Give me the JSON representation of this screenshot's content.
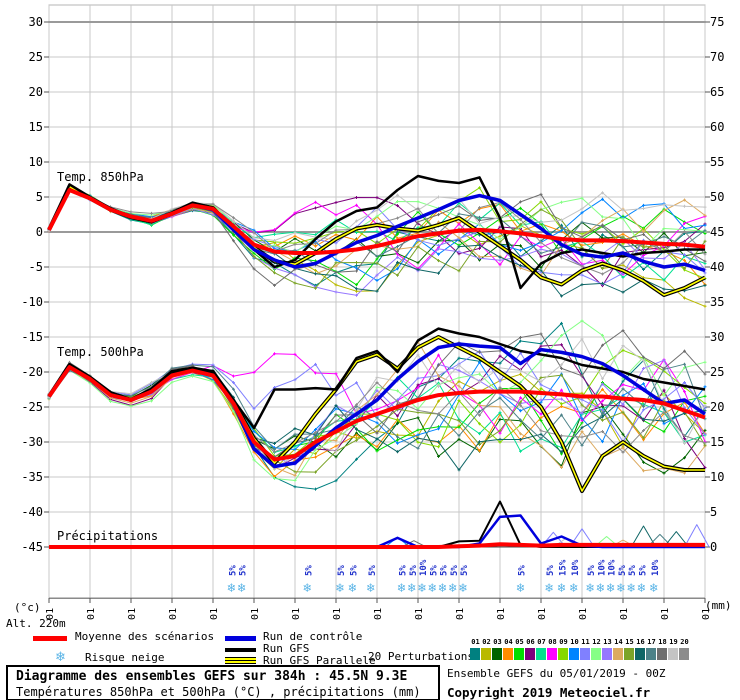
{
  "axes": {
    "left_unit": "(°c)",
    "right_unit": "(mm)",
    "alt_label": "Alt. 220m",
    "left_ticks": [
      30,
      25,
      20,
      15,
      10,
      5,
      0,
      -5,
      -10,
      -15,
      -20,
      -25,
      -30,
      -35,
      -40,
      -45
    ],
    "right_ticks": [
      75,
      70,
      65,
      60,
      55,
      50,
      45,
      40,
      35,
      30,
      25,
      20,
      15,
      10,
      5,
      0
    ],
    "x_labels": [
      "05/01",
      "06/01",
      "07/01",
      "08/01",
      "09/01",
      "10/01",
      "11/01",
      "12/01",
      "13/01",
      "14/01",
      "15/01",
      "16/01",
      "17/01",
      "18/01",
      "19/01",
      "20/01",
      "21/01"
    ]
  },
  "panel_labels": {
    "t850": "Temp. 850hPa",
    "t500": "Temp. 500hPa",
    "precip": "Précipitations"
  },
  "legend": {
    "mean": "Moyenne des scénarios",
    "control": "Run de contrôle",
    "gfs": "Run GFS",
    "parallel": "Run GFS Parallele",
    "perturbations": "20 Perturbations",
    "snow": "Risque neige",
    "member_numbers": [
      "01",
      "02",
      "03",
      "04",
      "05",
      "06",
      "07",
      "08",
      "09",
      "10",
      "11",
      "12",
      "13",
      "14",
      "15",
      "16",
      "17",
      "18",
      "19",
      "20"
    ]
  },
  "footer": {
    "run_info": "Ensemble GEFS du 05/01/2019 - 00Z",
    "copyright": "Copyright 2019 Meteociel.fr"
  },
  "info_box": {
    "line1": "Diagramme des ensembles GEFS sur 384h : 45.5N 9.3E",
    "line2": "Températures 850hPa et 500hPa (°C) , précipitations (mm)"
  },
  "colors": {
    "mean": "#ff0000",
    "control": "#0000dd",
    "gfs": "#000000",
    "parallel_inner": "#ffff00",
    "parallel_outer": "#000000",
    "grid": "#c9c9c9",
    "grid_emphasis": "#9a9a9a",
    "axis": "#8a8a8a",
    "snowflake": "#5ab4e6",
    "snow_label": "#2233cc",
    "members": [
      "#008080",
      "#b9b900",
      "#006400",
      "#ff8c00",
      "#00dd00",
      "#7d007d",
      "#00e090",
      "#ff00ff",
      "#86d800",
      "#0084ff",
      "#8080ff",
      "#86ff86",
      "#9678ff",
      "#dcaa60",
      "#7ca428",
      "#0f6666",
      "#4d8288",
      "#6e6e6e",
      "#c4c4c4",
      "#8c8c8c"
    ]
  },
  "snow_markers": [
    {
      "d": 4.45,
      "p": "5%"
    },
    {
      "d": 4.7,
      "p": "5%"
    },
    {
      "d": 6.3,
      "p": "5%"
    },
    {
      "d": 7.1,
      "p": "5%"
    },
    {
      "d": 7.4,
      "p": "5%"
    },
    {
      "d": 7.85,
      "p": "5%"
    },
    {
      "d": 8.6,
      "p": "5%"
    },
    {
      "d": 8.85,
      "p": "5%"
    },
    {
      "d": 9.1,
      "p": "10%"
    },
    {
      "d": 9.35,
      "p": "5%"
    },
    {
      "d": 9.6,
      "p": "5%"
    },
    {
      "d": 9.85,
      "p": "5%"
    },
    {
      "d": 10.1,
      "p": "5%"
    },
    {
      "d": 11.5,
      "p": "5%"
    },
    {
      "d": 12.2,
      "p": "5%"
    },
    {
      "d": 12.5,
      "p": "15%"
    },
    {
      "d": 12.8,
      "p": "10%"
    },
    {
      "d": 13.2,
      "p": "5%"
    },
    {
      "d": 13.45,
      "p": "10%"
    },
    {
      "d": 13.7,
      "p": "10%"
    },
    {
      "d": 13.95,
      "p": "5%"
    },
    {
      "d": 14.2,
      "p": "5%"
    },
    {
      "d": 14.45,
      "p": "5%"
    },
    {
      "d": 14.75,
      "p": "10%"
    }
  ],
  "chart_data": {
    "type": "line",
    "x_start": "05/01",
    "x_end": "21/01",
    "x_step_hours": 12,
    "points_per_series": 33,
    "t850": {
      "ylabel": "Temp. 850hPa (°C)",
      "mean": [
        0.3,
        6.0,
        4.8,
        3.2,
        2.2,
        1.6,
        2.6,
        3.8,
        3.3,
        0.8,
        -1.8,
        -2.8,
        -3.0,
        -3.0,
        -2.8,
        -2.5,
        -2.0,
        -1.3,
        -0.6,
        -0.2,
        0.2,
        0.3,
        0.1,
        -0.2,
        -0.6,
        -1.0,
        -1.2,
        -1.2,
        -1.3,
        -1.5,
        -1.7,
        -1.8,
        -2.1
      ],
      "control": [
        0.3,
        6.0,
        4.8,
        3.2,
        2.2,
        1.6,
        2.6,
        3.8,
        3.2,
        0.3,
        -2.5,
        -4.0,
        -5.0,
        -4.5,
        -3.0,
        -1.5,
        -0.5,
        0.8,
        2.0,
        3.2,
        4.5,
        5.2,
        4.5,
        2.5,
        0.5,
        -1.8,
        -3.2,
        -3.6,
        -3.0,
        -4.2,
        -5.0,
        -4.6,
        -5.5
      ],
      "gfs": [
        0.3,
        6.8,
        5.0,
        3.4,
        2.2,
        1.6,
        2.8,
        4.2,
        3.5,
        0.3,
        -2.5,
        -5.0,
        -4.0,
        -1.0,
        1.5,
        3.0,
        3.5,
        6.0,
        8.0,
        7.3,
        7.0,
        7.8,
        2.0,
        -8.0,
        -4.5,
        -3.0,
        -2.5,
        -3.0,
        -3.5,
        -3.0,
        -2.8,
        -2.5,
        -2.5
      ],
      "parallel": [
        0.3,
        6.5,
        4.8,
        3.2,
        2.1,
        1.5,
        2.6,
        4.0,
        3.4,
        0.4,
        -2.2,
        -4.2,
        -4.6,
        -3.0,
        -1.0,
        0.5,
        1.0,
        0.5,
        0.2,
        1.0,
        2.0,
        0.0,
        -2.0,
        -4.0,
        -6.5,
        -7.5,
        -5.5,
        -4.5,
        -5.5,
        -7.0,
        -9.0,
        -8.0,
        -6.5
      ]
    },
    "t500": {
      "ylabel": "Temp. 500hPa (°C)",
      "mean": [
        -23.5,
        -19.3,
        -21.0,
        -23.3,
        -24.0,
        -22.8,
        -20.5,
        -19.8,
        -20.5,
        -24.5,
        -30.0,
        -32.5,
        -32.0,
        -30.0,
        -28.5,
        -27.0,
        -26.0,
        -25.0,
        -24.0,
        -23.3,
        -23.0,
        -22.8,
        -22.8,
        -22.8,
        -23.0,
        -23.2,
        -23.5,
        -23.5,
        -23.8,
        -24.0,
        -24.5,
        -25.5,
        -26.5
      ],
      "control": [
        -23.5,
        -19.3,
        -21.0,
        -23.3,
        -24.0,
        -22.8,
        -20.5,
        -19.8,
        -20.5,
        -24.5,
        -31.0,
        -33.5,
        -33.0,
        -30.5,
        -28.0,
        -26.0,
        -24.0,
        -21.0,
        -18.5,
        -16.5,
        -16.0,
        -16.3,
        -16.5,
        -18.8,
        -16.8,
        -17.2,
        -17.8,
        -18.8,
        -20.5,
        -22.5,
        -24.5,
        -24.0,
        -26.0
      ],
      "gfs": [
        -23.5,
        -19.0,
        -20.8,
        -23.0,
        -24.0,
        -22.5,
        -20.0,
        -19.5,
        -20.0,
        -24.0,
        -28.0,
        -22.5,
        -22.5,
        -22.3,
        -22.5,
        -18.0,
        -17.0,
        -20.0,
        -15.5,
        -13.8,
        -14.5,
        -15.0,
        -16.0,
        -17.0,
        -17.5,
        -18.0,
        -19.0,
        -19.5,
        -20.0,
        -21.0,
        -21.5,
        -22.0,
        -22.5
      ],
      "parallel": [
        -23.5,
        -19.0,
        -20.8,
        -23.0,
        -24.0,
        -22.5,
        -20.0,
        -19.5,
        -20.0,
        -24.2,
        -29.5,
        -33.0,
        -30.0,
        -26.0,
        -22.5,
        -18.5,
        -17.5,
        -19.5,
        -16.5,
        -15.0,
        -16.5,
        -18.0,
        -20.0,
        -22.0,
        -25.0,
        -30.0,
        -37.0,
        -32.0,
        -30.0,
        -32.0,
        -33.5,
        -34.0,
        -34.0
      ]
    },
    "precip_mm": {
      "mean": [
        0,
        0,
        0,
        0,
        0,
        0,
        0,
        0,
        0,
        0,
        0,
        0,
        0,
        0,
        0,
        0,
        0,
        0,
        0,
        0,
        0.1,
        0.2,
        0.4,
        0.3,
        0.2,
        0.3,
        0.3,
        0.3,
        0.3,
        0.3,
        0.3,
        0.3,
        0.3
      ],
      "control": [
        0,
        0,
        0,
        0,
        0,
        0,
        0,
        0,
        0,
        0,
        0,
        0,
        0,
        0,
        0,
        0,
        0,
        1.3,
        0,
        0,
        0,
        0.5,
        4.3,
        4.5,
        0.5,
        1.5,
        0.2,
        0,
        0,
        0,
        0,
        0,
        0
      ],
      "gfs": [
        0,
        0,
        0,
        0,
        0,
        0,
        0,
        0,
        0,
        0,
        0,
        0,
        0,
        0,
        0,
        0,
        0,
        0,
        0,
        0,
        0.8,
        0.9,
        6.5,
        0.3,
        0,
        0,
        0,
        0,
        0,
        0,
        0,
        0,
        0
      ],
      "parallel": [
        0,
        0,
        0,
        0,
        0,
        0,
        0,
        0,
        0,
        0,
        0,
        0,
        0,
        0,
        0,
        0,
        0,
        0,
        0,
        0,
        0,
        0,
        0,
        0,
        0,
        0,
        0,
        0,
        0,
        0,
        0,
        0,
        0
      ],
      "member_spikes": [
        {
          "c": 9,
          "day": 8.5,
          "v": 1.4
        },
        {
          "c": 17,
          "day": 8.9,
          "v": 0.9
        },
        {
          "c": 10,
          "day": 12.3,
          "v": 2.1
        },
        {
          "c": 18,
          "day": 12.6,
          "v": 1.2
        },
        {
          "c": 10,
          "day": 13.0,
          "v": 2.6
        },
        {
          "c": 11,
          "day": 13.6,
          "v": 1.5
        },
        {
          "c": 13,
          "day": 14.0,
          "v": 1.0
        },
        {
          "c": 15,
          "day": 14.5,
          "v": 3.0
        },
        {
          "c": 16,
          "day": 14.9,
          "v": 1.8
        },
        {
          "c": 15,
          "day": 15.3,
          "v": 2.2
        },
        {
          "c": 10,
          "day": 15.8,
          "v": 3.2
        }
      ]
    },
    "ensemble": {
      "count": 20,
      "seed_t850": 4021,
      "seed_t500": 7717,
      "spread_t850": [
        0.4,
        0.5,
        0.5,
        0.5,
        0.6,
        0.8,
        0.8,
        0.8,
        0.9,
        1.4,
        2.4,
        3.0,
        3.6,
        4.0,
        4.6,
        5.0,
        5.5,
        5.5,
        5.5,
        5.5,
        5.5,
        5.5,
        5.5,
        5.5,
        5.8,
        5.8,
        6.0,
        6.0,
        6.0,
        6.0,
        6.0,
        6.0,
        6.0
      ],
      "spread_t500": [
        0.5,
        0.6,
        0.6,
        0.7,
        0.8,
        1.0,
        1.0,
        1.0,
        1.1,
        1.6,
        2.6,
        3.2,
        3.8,
        4.5,
        5.5,
        6.5,
        7.0,
        7.0,
        7.5,
        7.5,
        7.5,
        8.0,
        8.0,
        8.0,
        8.0,
        8.5,
        9.0,
        9.0,
        9.0,
        9.0,
        9.0,
        9.0,
        9.0
      ],
      "excursions": {
        "t850": [
          {
            "m": 15,
            "d": 12.0,
            "depth": 6,
            "w": 1.4
          },
          {
            "m": 17,
            "d": 5.5,
            "depth": 4,
            "w": 0.9
          },
          {
            "m": 16,
            "d": 6.5,
            "depth": 4,
            "w": 1.0
          },
          {
            "m": 7,
            "d": 6.5,
            "depth": -7,
            "w": 1.0
          },
          {
            "m": 5,
            "d": 7.0,
            "depth": -6,
            "w": 1.2
          }
        ],
        "t500": [
          {
            "m": 2,
            "d": 9.5,
            "depth": 7,
            "w": 1.4
          },
          {
            "m": 15,
            "d": 10.5,
            "depth": 9,
            "w": 1.8
          },
          {
            "m": 6,
            "d": 11.5,
            "depth": 8,
            "w": 1.1
          },
          {
            "m": 4,
            "d": 12.5,
            "depth": 6,
            "w": 1.4
          },
          {
            "m": 7,
            "d": 5.7,
            "depth": -14,
            "w": 0.8
          },
          {
            "m": 10,
            "d": 6.0,
            "depth": -12,
            "w": 1.0
          }
        ]
      }
    }
  }
}
